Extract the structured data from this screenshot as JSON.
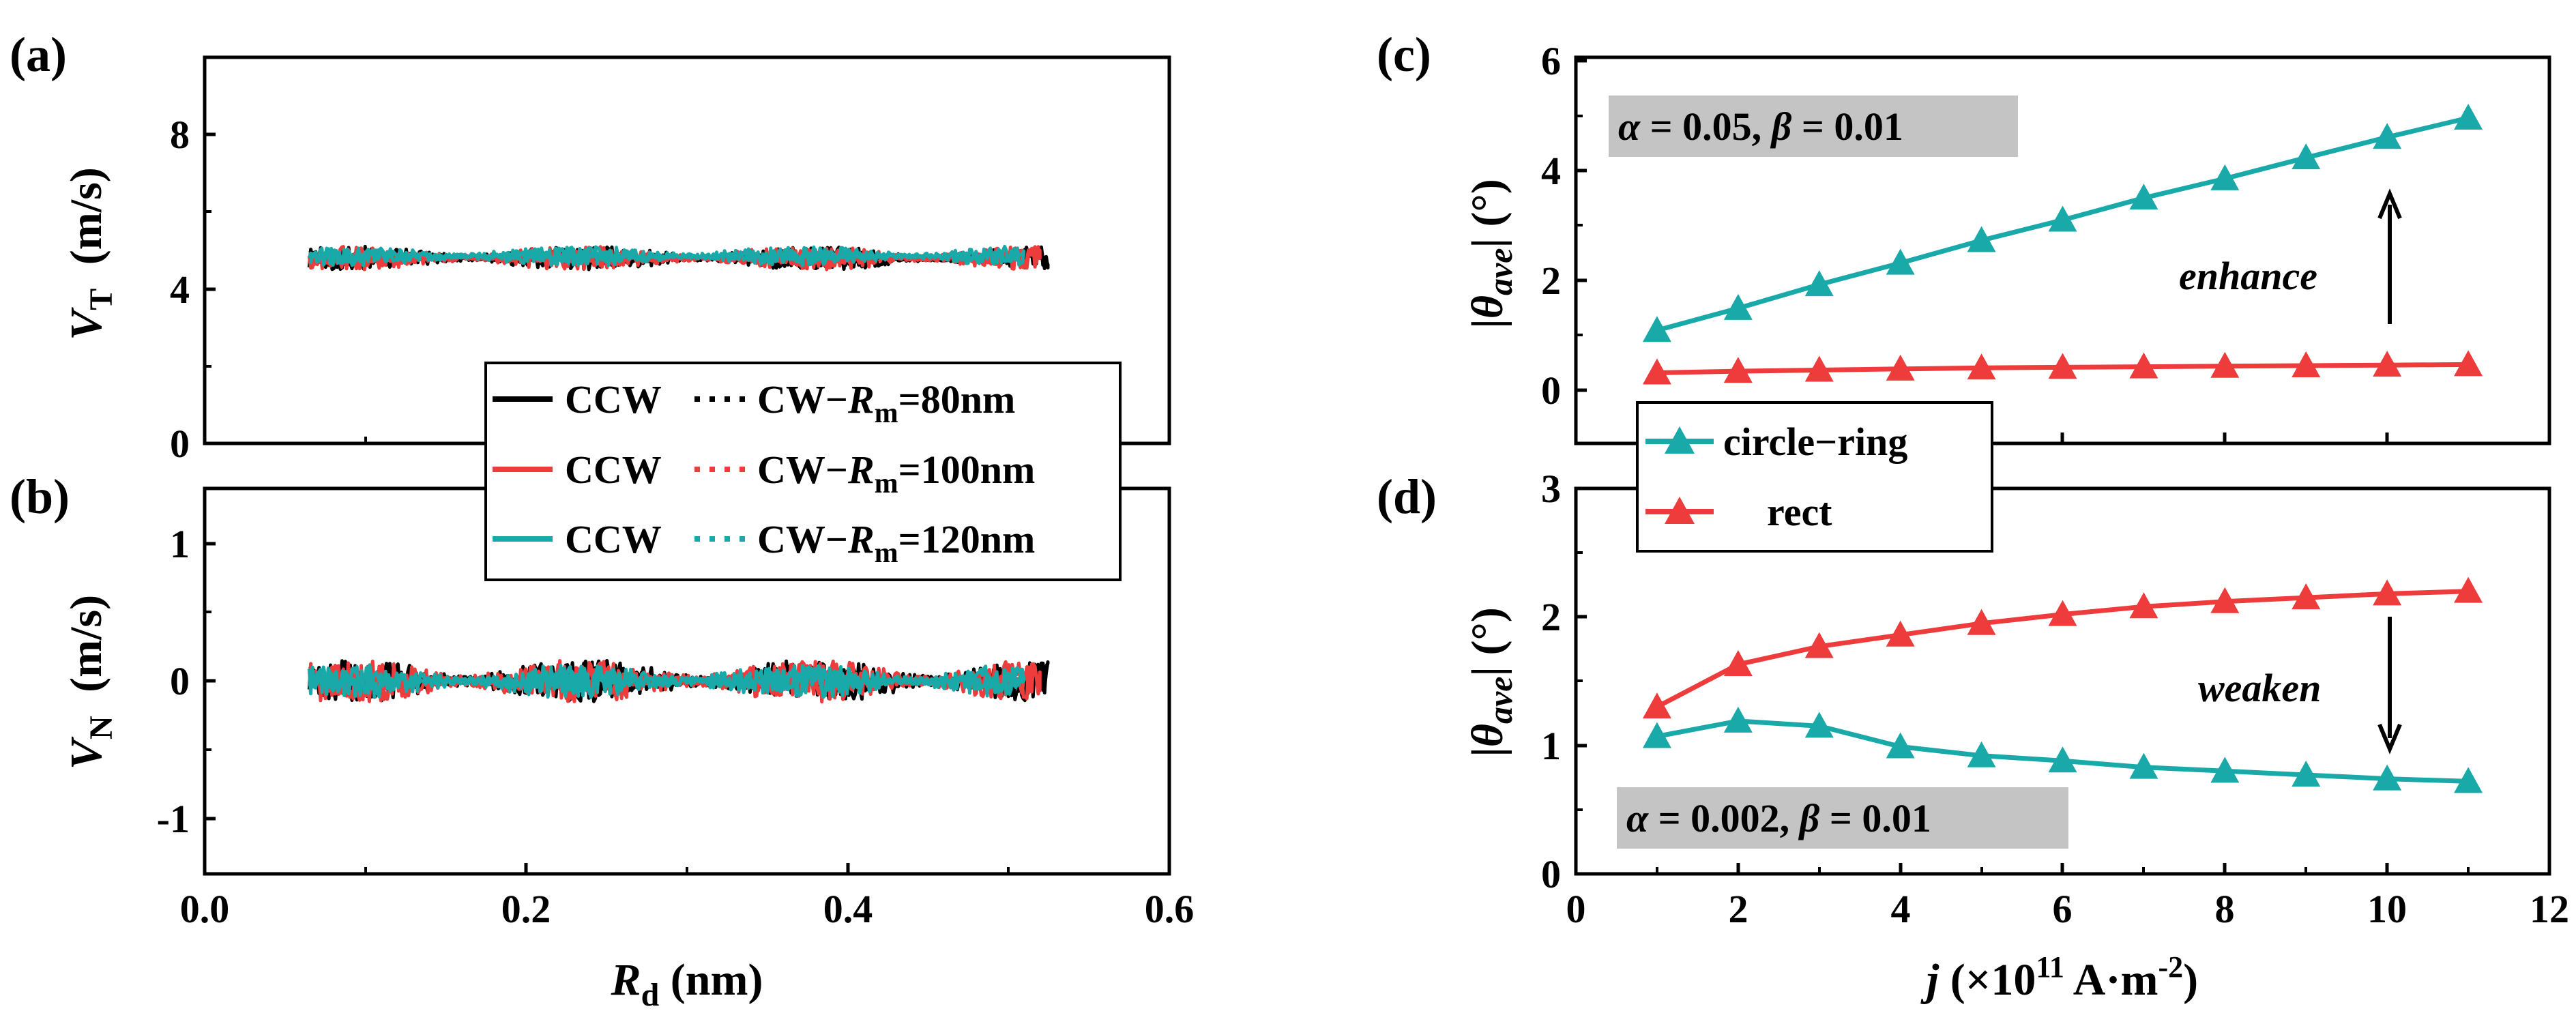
{
  "figure": {
    "panel_labels": [
      "(a)",
      "(b)",
      "(c)",
      "(d)"
    ]
  },
  "left": {
    "x_axis": {
      "label_main": "R",
      "label_sub": "d",
      "label_unit": " (nm)",
      "ticks": [
        "0.0",
        "0.2",
        "0.4",
        "0.6"
      ]
    },
    "a_axis": {
      "label_main": "V",
      "label_sub": "T",
      "label_unit": " (m/s)",
      "ticks": [
        "0",
        "4",
        "8"
      ]
    },
    "b_axis": {
      "label_main": "V",
      "label_sub": "N",
      "label_unit": " (m/s)",
      "ticks": [
        "-1",
        "0",
        "1"
      ]
    },
    "legend": {
      "ccw": "CCW",
      "cw_prefix": "CW",
      "dash": "−",
      "rm": "R",
      "rm_sub": "m",
      "rows": [
        {
          "value": "=80nm",
          "color": "#000000"
        },
        {
          "value": "=100nm",
          "color": "#ee3b3b"
        },
        {
          "value": "=120nm",
          "color": "#1aa9a9"
        }
      ]
    }
  },
  "right": {
    "x_axis": {
      "label_main": "j",
      "label_rest": " (×10",
      "label_sup": "11",
      "label_unit": " A·m",
      "label_sup2": "-2",
      "label_close": ")",
      "ticks": [
        "0",
        "2",
        "4",
        "6",
        "8",
        "10",
        "12"
      ]
    },
    "y_axis": {
      "label_bar": "|",
      "label_theta": "θ",
      "label_sub": "ave",
      "label_unit": "| (°)"
    },
    "c_ticks": [
      "0",
      "2",
      "4",
      "6"
    ],
    "d_ticks": [
      "0",
      "1",
      "2",
      "3"
    ],
    "c_param": {
      "alpha": "α",
      "alpha_val": " = 0.05, ",
      "beta": "β",
      "beta_val": " = 0.01"
    },
    "d_param": {
      "alpha": "α",
      "alpha_val": " = 0.002, ",
      "beta": "β",
      "beta_val": " = 0.01"
    },
    "c_annotation": "enhance",
    "d_annotation": "weaken",
    "legend": {
      "circle_ring": "circle−ring",
      "rect": "rect"
    }
  },
  "colors": {
    "black": "#000000",
    "red": "#ee3b3b",
    "teal": "#1aa9a9",
    "param_box": "#c4c4c4"
  },
  "chart_data": [
    {
      "type": "line",
      "panel": "(a)",
      "xlabel": "R_d (nm)",
      "ylabel": "V_T (m/s)",
      "xlim": [
        0.0,
        0.6
      ],
      "ylim": [
        0,
        10
      ],
      "series": [
        {
          "name": "CCW / CW − R_m=80nm",
          "color": "#000000",
          "x_range": [
            0.065,
            0.525
          ],
          "y_center": 4.8,
          "y_spread": 0.3
        },
        {
          "name": "CCW / CW − R_m=100nm",
          "color": "#ee3b3b",
          "x_range": [
            0.065,
            0.52
          ],
          "y_center": 4.8,
          "y_spread": 0.3
        },
        {
          "name": "CCW / CW − R_m=120nm",
          "color": "#1aa9a9",
          "x_range": [
            0.065,
            0.51
          ],
          "y_center": 4.85,
          "y_spread": 0.25
        }
      ]
    },
    {
      "type": "line",
      "panel": "(b)",
      "xlabel": "R_d (nm)",
      "ylabel": "V_N (m/s)",
      "xlim": [
        0.0,
        0.6
      ],
      "ylim": [
        -1.4,
        1.4
      ],
      "series": [
        {
          "name": "CCW / CW − R_m=80nm",
          "color": "#000000",
          "x_range": [
            0.065,
            0.525
          ],
          "y_center": 0.0,
          "y_spread": 0.15
        },
        {
          "name": "CCW / CW − R_m=100nm",
          "color": "#ee3b3b",
          "x_range": [
            0.065,
            0.52
          ],
          "y_center": 0.0,
          "y_spread": 0.15
        },
        {
          "name": "CCW / CW − R_m=120nm",
          "color": "#1aa9a9",
          "x_range": [
            0.065,
            0.51
          ],
          "y_center": 0.0,
          "y_spread": 0.12
        }
      ]
    },
    {
      "type": "line",
      "panel": "(c)",
      "xlabel": "j (×10^11 A·m^-2)",
      "ylabel": "|θ_ave| (°)",
      "xlim": [
        0,
        12
      ],
      "ylim": [
        -1,
        6
      ],
      "x": [
        1,
        2,
        3,
        4,
        5,
        6,
        7,
        8,
        9,
        10,
        11
      ],
      "series": [
        {
          "name": "circle−ring",
          "color": "#1aa9a9",
          "values": [
            1.05,
            1.45,
            1.88,
            2.27,
            2.68,
            3.05,
            3.45,
            3.8,
            4.18,
            4.55,
            4.9
          ]
        },
        {
          "name": "rect",
          "color": "#ee3b3b",
          "values": [
            0.28,
            0.31,
            0.33,
            0.35,
            0.37,
            0.38,
            0.39,
            0.4,
            0.41,
            0.42,
            0.43
          ]
        }
      ]
    },
    {
      "type": "line",
      "panel": "(d)",
      "xlabel": "j (×10^11 A·m^-2)",
      "ylabel": "|θ_ave| (°)",
      "xlim": [
        0,
        12
      ],
      "ylim": [
        0,
        3
      ],
      "x": [
        1,
        2,
        3,
        4,
        5,
        6,
        7,
        8,
        9,
        10,
        11
      ],
      "series": [
        {
          "name": "circle−ring",
          "color": "#1aa9a9",
          "values": [
            1.07,
            1.19,
            1.15,
            0.99,
            0.92,
            0.88,
            0.83,
            0.8,
            0.77,
            0.74,
            0.72
          ]
        },
        {
          "name": "rect",
          "color": "#ee3b3b",
          "values": [
            1.3,
            1.63,
            1.77,
            1.86,
            1.95,
            2.02,
            2.08,
            2.12,
            2.15,
            2.18,
            2.2
          ]
        }
      ]
    }
  ]
}
